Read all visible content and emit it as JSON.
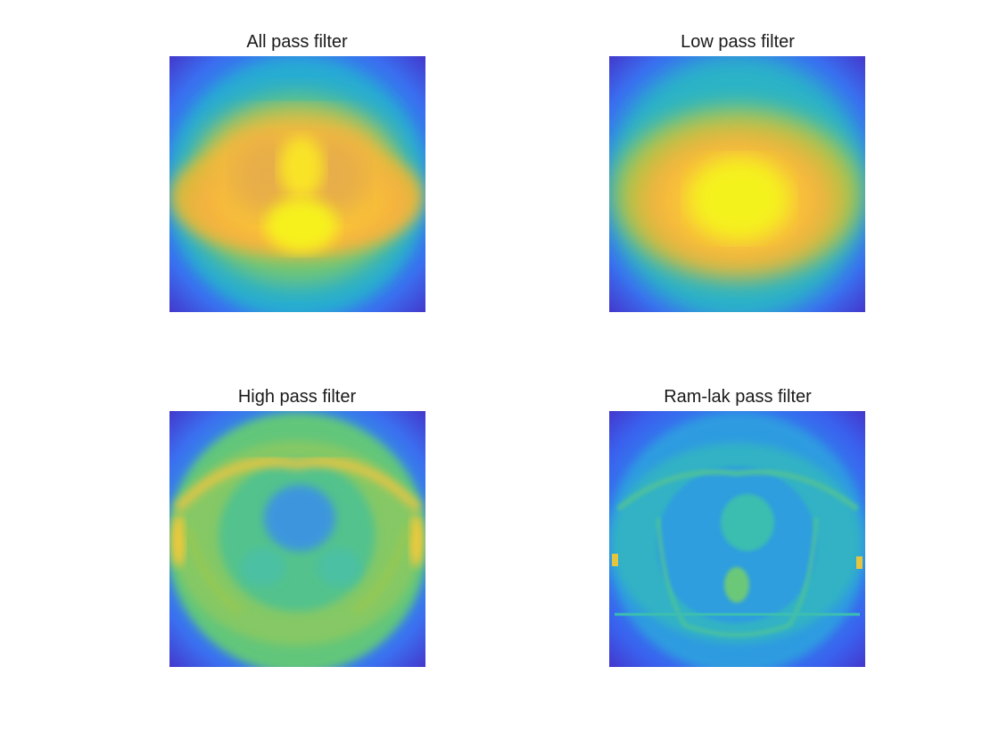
{
  "panels": [
    {
      "title": "All pass filter"
    },
    {
      "title": "Low pass filter"
    },
    {
      "title": "High pass filter"
    },
    {
      "title": "Ram-lak pass filter"
    }
  ],
  "colormap": {
    "name": "parula",
    "low": "#3e26a8",
    "mid_low": "#2f97e0",
    "mid": "#2dc2a0",
    "mid_high": "#a9c43a",
    "high": "#f9fb0e"
  }
}
